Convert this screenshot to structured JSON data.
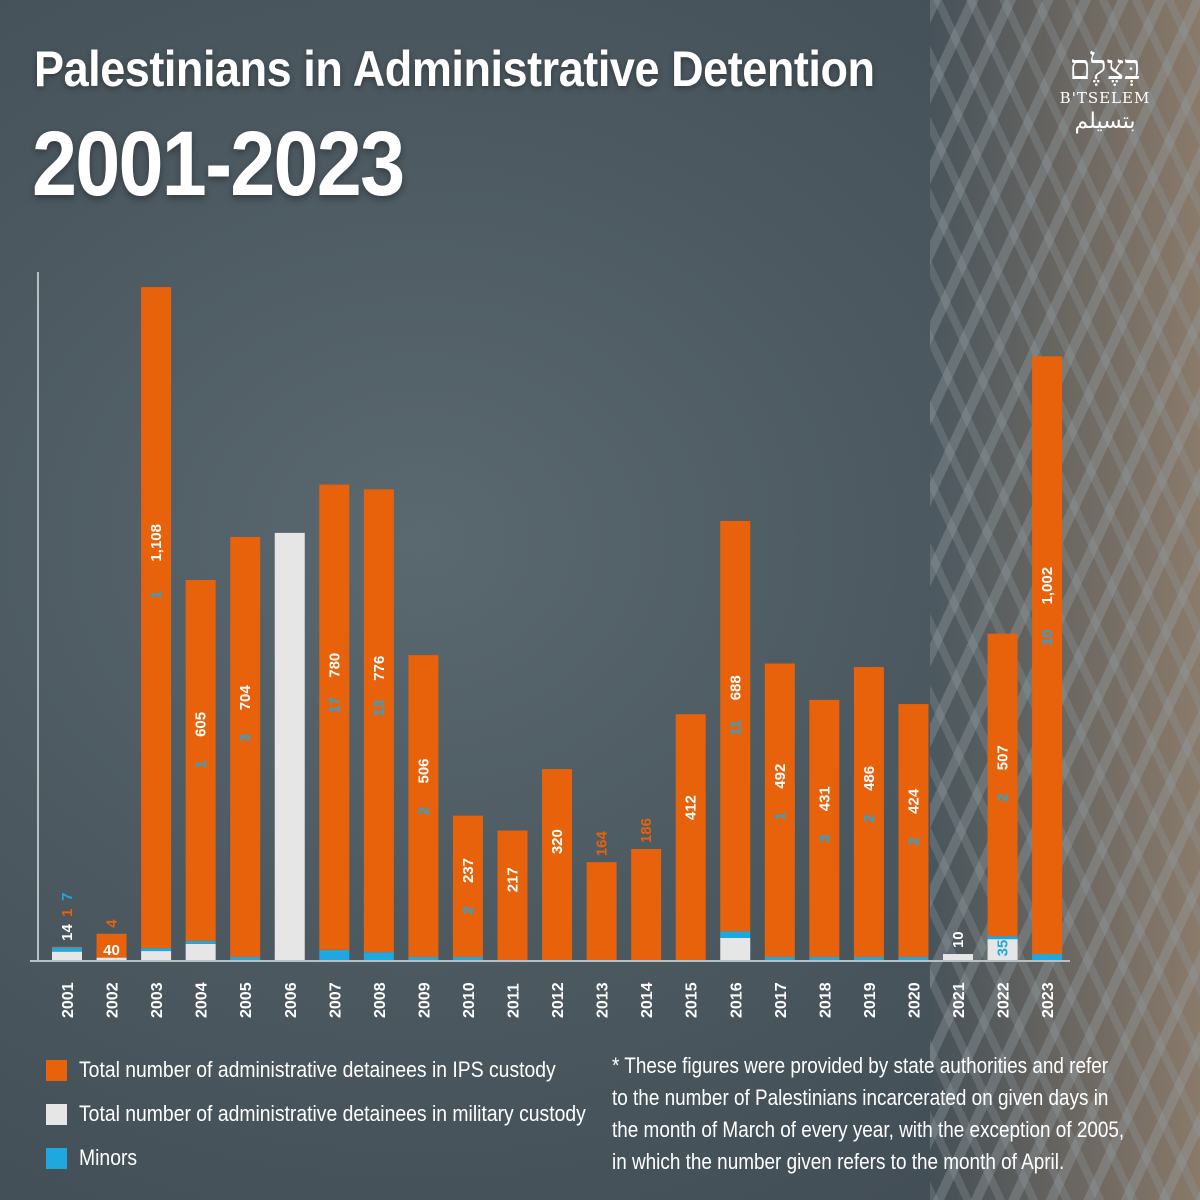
{
  "title": "Palestinians in Administrative Detention",
  "subtitle": "2001-2023",
  "logo": {
    "hebrew": "בְּצֶלֶם",
    "latin": "B'TSELEM",
    "arabic": "بتسيلم"
  },
  "colors": {
    "ips": "#e8620c",
    "military": "#e6e6e6",
    "minors": "#1fa8e0",
    "axis": "#b9c0c4"
  },
  "chart_data": {
    "type": "bar",
    "stacked": true,
    "title": "Palestinians in Administrative Detention 2001-2023",
    "xlabel": "",
    "ylabel": "",
    "ylim": [
      0,
      1150
    ],
    "categories": [
      "2001",
      "2002",
      "2003",
      "2004",
      "2005",
      "2006",
      "2007",
      "2008",
      "2009",
      "2010",
      "2011",
      "2012",
      "2013",
      "2014",
      "2015",
      "2016",
      "2017",
      "2018",
      "2019",
      "2020",
      "2021",
      "2022",
      "2023"
    ],
    "series": [
      {
        "name": "Total number of administrative detainees in IPS custody",
        "color": "#e8620c",
        "values": [
          1,
          40,
          1108,
          605,
          704,
          null,
          780,
          776,
          506,
          237,
          217,
          320,
          164,
          186,
          412,
          688,
          492,
          431,
          486,
          424,
          null,
          507,
          1002
        ]
      },
      {
        "name": "Total number of administrative detainees in military custody",
        "color": "#e6e6e6",
        "values": [
          14,
          4,
          15,
          27,
          null,
          716,
          null,
          null,
          null,
          null,
          null,
          null,
          null,
          null,
          null,
          37,
          null,
          null,
          null,
          null,
          10,
          35,
          null
        ]
      },
      {
        "name": "Minors",
        "color": "#1fa8e0",
        "values": [
          7,
          null,
          1,
          1,
          3,
          null,
          17,
          13,
          2,
          2,
          null,
          null,
          null,
          null,
          null,
          11,
          1,
          3,
          2,
          2,
          null,
          2,
          10
        ]
      }
    ],
    "value_labels": [
      {
        "year": "2001",
        "ips": "1",
        "military": "14",
        "minors": "7"
      },
      {
        "year": "2002",
        "ips": "40",
        "military": "4"
      },
      {
        "year": "2003",
        "ips": "1,108",
        "minors": "1"
      },
      {
        "year": "2004",
        "ips": "605",
        "minors": "1"
      },
      {
        "year": "2005",
        "ips": "704",
        "minors": "3"
      },
      {
        "year": "2007",
        "ips": "780",
        "minors": "17"
      },
      {
        "year": "2008",
        "ips": "776",
        "minors": "13"
      },
      {
        "year": "2009",
        "ips": "506",
        "minors": "2"
      },
      {
        "year": "2010",
        "ips": "237",
        "minors": "2"
      },
      {
        "year": "2011",
        "ips": "217"
      },
      {
        "year": "2012",
        "ips": "320"
      },
      {
        "year": "2013",
        "ips": "164"
      },
      {
        "year": "2014",
        "ips": "186"
      },
      {
        "year": "2015",
        "ips": "412"
      },
      {
        "year": "2016",
        "ips": "688",
        "minors": "11"
      },
      {
        "year": "2017",
        "ips": "492",
        "minors": "1"
      },
      {
        "year": "2018",
        "ips": "431",
        "minors": "3"
      },
      {
        "year": "2019",
        "ips": "486",
        "minors": "2"
      },
      {
        "year": "2020",
        "ips": "424",
        "minors": "2"
      },
      {
        "year": "2021",
        "military": "10"
      },
      {
        "year": "2022",
        "ips": "507",
        "military": "35",
        "minors": "2"
      },
      {
        "year": "2023",
        "ips": "1,002",
        "minors": "10"
      }
    ]
  },
  "legend": [
    {
      "label": "Total number of administrative detainees in IPS custody",
      "color": "#e8620c"
    },
    {
      "label": "Total number of administrative detainees in military custody",
      "color": "#e6e6e6"
    },
    {
      "label": "Minors",
      "color": "#1fa8e0"
    }
  ],
  "footnote": {
    "lines": [
      "* These figures were provided by state authorities and refer",
      "to the number of Palestinians incarcerated on given days in",
      "the month of March of every year, with the exception of 2005,",
      "in which the number given refers to the month of April."
    ]
  }
}
